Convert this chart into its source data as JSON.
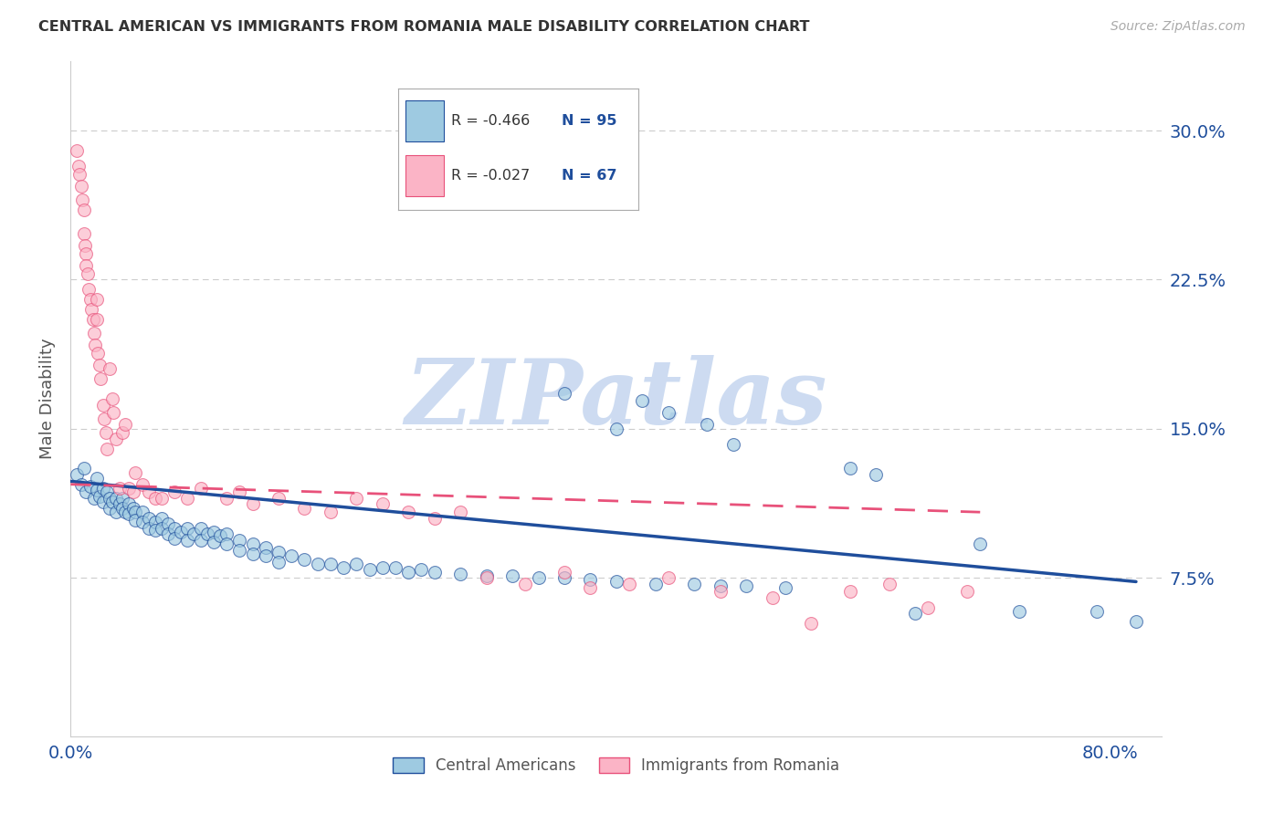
{
  "title": "CENTRAL AMERICAN VS IMMIGRANTS FROM ROMANIA MALE DISABILITY CORRELATION CHART",
  "source": "Source: ZipAtlas.com",
  "ylabel": "Male Disability",
  "yticks": [
    0.0,
    0.075,
    0.15,
    0.225,
    0.3
  ],
  "ytick_labels": [
    "",
    "7.5%",
    "15.0%",
    "22.5%",
    "30.0%"
  ],
  "xlim": [
    0.0,
    0.84
  ],
  "ylim": [
    -0.005,
    0.335
  ],
  "legend_blue_r": "R = -0.466",
  "legend_blue_n": "N = 95",
  "legend_pink_r": "R = -0.027",
  "legend_pink_n": "N = 67",
  "scatter_blue": {
    "x": [
      0.005,
      0.008,
      0.01,
      0.012,
      0.015,
      0.018,
      0.02,
      0.02,
      0.022,
      0.025,
      0.025,
      0.028,
      0.03,
      0.03,
      0.032,
      0.035,
      0.035,
      0.038,
      0.04,
      0.04,
      0.042,
      0.045,
      0.045,
      0.048,
      0.05,
      0.05,
      0.055,
      0.055,
      0.06,
      0.06,
      0.065,
      0.065,
      0.07,
      0.07,
      0.075,
      0.075,
      0.08,
      0.08,
      0.085,
      0.09,
      0.09,
      0.095,
      0.1,
      0.1,
      0.105,
      0.11,
      0.11,
      0.115,
      0.12,
      0.12,
      0.13,
      0.13,
      0.14,
      0.14,
      0.15,
      0.15,
      0.16,
      0.16,
      0.17,
      0.18,
      0.19,
      0.2,
      0.21,
      0.22,
      0.23,
      0.24,
      0.25,
      0.26,
      0.27,
      0.28,
      0.3,
      0.32,
      0.34,
      0.36,
      0.38,
      0.4,
      0.42,
      0.45,
      0.48,
      0.5,
      0.52,
      0.55,
      0.38,
      0.42,
      0.44,
      0.46,
      0.49,
      0.51,
      0.6,
      0.62,
      0.65,
      0.7,
      0.73,
      0.79,
      0.82
    ],
    "y": [
      0.127,
      0.122,
      0.13,
      0.118,
      0.121,
      0.115,
      0.125,
      0.119,
      0.116,
      0.12,
      0.113,
      0.118,
      0.115,
      0.11,
      0.113,
      0.115,
      0.108,
      0.112,
      0.115,
      0.11,
      0.108,
      0.112,
      0.107,
      0.11,
      0.108,
      0.104,
      0.108,
      0.103,
      0.105,
      0.1,
      0.103,
      0.099,
      0.105,
      0.1,
      0.102,
      0.097,
      0.1,
      0.095,
      0.098,
      0.1,
      0.094,
      0.097,
      0.1,
      0.094,
      0.097,
      0.098,
      0.093,
      0.096,
      0.097,
      0.092,
      0.094,
      0.089,
      0.092,
      0.087,
      0.09,
      0.086,
      0.088,
      0.083,
      0.086,
      0.084,
      0.082,
      0.082,
      0.08,
      0.082,
      0.079,
      0.08,
      0.08,
      0.078,
      0.079,
      0.078,
      0.077,
      0.076,
      0.076,
      0.075,
      0.075,
      0.074,
      0.073,
      0.072,
      0.072,
      0.071,
      0.071,
      0.07,
      0.168,
      0.15,
      0.164,
      0.158,
      0.152,
      0.142,
      0.13,
      0.127,
      0.057,
      0.092,
      0.058,
      0.058,
      0.053
    ]
  },
  "scatter_pink": {
    "x": [
      0.005,
      0.006,
      0.007,
      0.008,
      0.009,
      0.01,
      0.01,
      0.011,
      0.012,
      0.012,
      0.013,
      0.014,
      0.015,
      0.016,
      0.017,
      0.018,
      0.019,
      0.02,
      0.02,
      0.021,
      0.022,
      0.023,
      0.025,
      0.026,
      0.027,
      0.028,
      0.03,
      0.032,
      0.033,
      0.035,
      0.038,
      0.04,
      0.042,
      0.045,
      0.048,
      0.05,
      0.055,
      0.06,
      0.065,
      0.07,
      0.08,
      0.09,
      0.1,
      0.12,
      0.13,
      0.14,
      0.16,
      0.18,
      0.2,
      0.22,
      0.24,
      0.26,
      0.28,
      0.3,
      0.32,
      0.35,
      0.38,
      0.4,
      0.43,
      0.46,
      0.5,
      0.54,
      0.57,
      0.6,
      0.63,
      0.66,
      0.69
    ],
    "y": [
      0.29,
      0.282,
      0.278,
      0.272,
      0.265,
      0.26,
      0.248,
      0.242,
      0.238,
      0.232,
      0.228,
      0.22,
      0.215,
      0.21,
      0.205,
      0.198,
      0.192,
      0.215,
      0.205,
      0.188,
      0.182,
      0.175,
      0.162,
      0.155,
      0.148,
      0.14,
      0.18,
      0.165,
      0.158,
      0.145,
      0.12,
      0.148,
      0.152,
      0.12,
      0.118,
      0.128,
      0.122,
      0.118,
      0.115,
      0.115,
      0.118,
      0.115,
      0.12,
      0.115,
      0.118,
      0.112,
      0.115,
      0.11,
      0.108,
      0.115,
      0.112,
      0.108,
      0.105,
      0.108,
      0.075,
      0.072,
      0.078,
      0.07,
      0.072,
      0.075,
      0.068,
      0.065,
      0.052,
      0.068,
      0.072,
      0.06,
      0.068
    ]
  },
  "trend_blue": {
    "x_start": 0.0,
    "y_start": 0.1235,
    "x_end": 0.82,
    "y_end": 0.073
  },
  "trend_pink": {
    "x_start": 0.0,
    "y_start": 0.122,
    "x_end": 0.7,
    "y_end": 0.108
  },
  "color_blue": "#9ecae1",
  "color_pink": "#fbb4c6",
  "color_trendblue": "#1f4e9c",
  "color_trendpink": "#e8517a",
  "color_gridlines": "#cccccc",
  "color_ytick_labels": "#1f4e9c",
  "color_title": "#333333",
  "watermark_color": "#c8d8f0",
  "legend_label_blue": "Central Americans",
  "legend_label_pink": "Immigrants from Romania"
}
